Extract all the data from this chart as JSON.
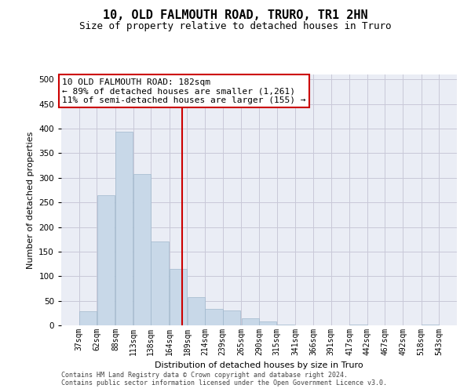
{
  "title1": "10, OLD FALMOUTH ROAD, TRURO, TR1 2HN",
  "title2": "Size of property relative to detached houses in Truro",
  "xlabel": "Distribution of detached houses by size in Truro",
  "ylabel": "Number of detached properties",
  "footnote1": "Contains HM Land Registry data © Crown copyright and database right 2024.",
  "footnote2": "Contains public sector information licensed under the Open Government Licence v3.0.",
  "annotation_line1": "10 OLD FALMOUTH ROAD: 182sqm",
  "annotation_line2": "← 89% of detached houses are smaller (1,261)",
  "annotation_line3": "11% of semi-detached houses are larger (155) →",
  "bar_color": "#c8d8e8",
  "bar_edge_color": "#a0b8cc",
  "vline_color": "#cc0000",
  "vline_x": 182,
  "bin_edges": [
    37,
    62,
    88,
    113,
    138,
    164,
    189,
    214,
    239,
    265,
    290,
    315,
    341,
    366,
    391,
    417,
    442,
    467,
    492,
    518,
    543
  ],
  "bar_heights": [
    28,
    265,
    393,
    308,
    170,
    115,
    58,
    34,
    30,
    15,
    8,
    1,
    0,
    0,
    0,
    1,
    0,
    0,
    0,
    2
  ],
  "xlim": [
    12,
    568
  ],
  "ylim": [
    0,
    510
  ],
  "yticks": [
    0,
    50,
    100,
    150,
    200,
    250,
    300,
    350,
    400,
    450,
    500
  ],
  "grid_color": "#c8c8d8",
  "bg_color": "#eaedf5",
  "annotation_box_color": "#cc0000",
  "title1_fontsize": 11,
  "title2_fontsize": 9,
  "ann_fontsize": 8,
  "tick_fontsize": 7,
  "ylabel_fontsize": 8,
  "xlabel_fontsize": 8,
  "footnote_fontsize": 6
}
